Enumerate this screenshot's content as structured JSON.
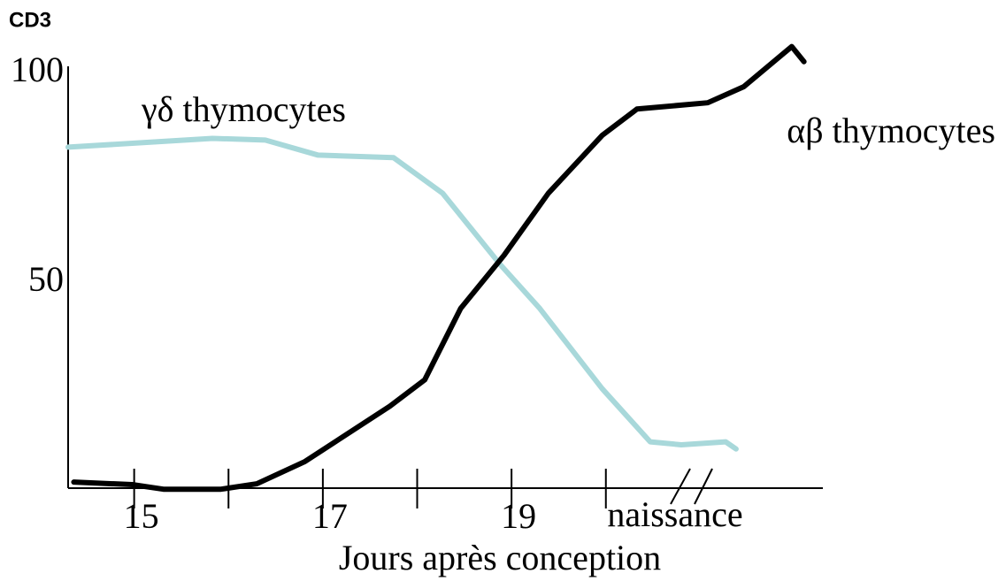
{
  "chart_data": {
    "type": "line",
    "title": "CD3",
    "x_label": "Jours après conception",
    "xlim": [
      14.3,
      22.3
    ],
    "xticks": [
      15,
      17,
      19
    ],
    "minor_xticks": [
      16,
      18,
      20
    ],
    "ylim": [
      0,
      100
    ],
    "yticks": [
      50,
      100
    ],
    "annotation": "naissance",
    "series": [
      {
        "name": "γδ thymocytes",
        "color": "#a8d8da",
        "x": [
          14.3,
          15.83,
          16.39,
          16.95,
          17.75,
          18.27,
          18.88,
          19.3,
          19.96,
          20.47,
          20.8,
          21.27,
          21.38
        ],
        "values": [
          82.4,
          84.5,
          84.1,
          80.5,
          79.9,
          71.4,
          54.4,
          43.9,
          24.8,
          12.1,
          11.4,
          12.1,
          10.4
        ]
      },
      {
        "name": "αβ thymocytes",
        "color": "#000000",
        "x": [
          14.36,
          14.98,
          15.31,
          15.92,
          16.3,
          16.81,
          17.71,
          18.08,
          18.46,
          18.92,
          19.39,
          19.96,
          20.33,
          21.08,
          21.46,
          21.97,
          22.1
        ],
        "values": [
          2.5,
          1.9,
          0.8,
          0.8,
          2.1,
          7.4,
          20.6,
          26.9,
          43.9,
          56.6,
          71.4,
          85.2,
          91.5,
          93.0,
          96.8,
          106.4,
          102.8
        ]
      }
    ]
  }
}
